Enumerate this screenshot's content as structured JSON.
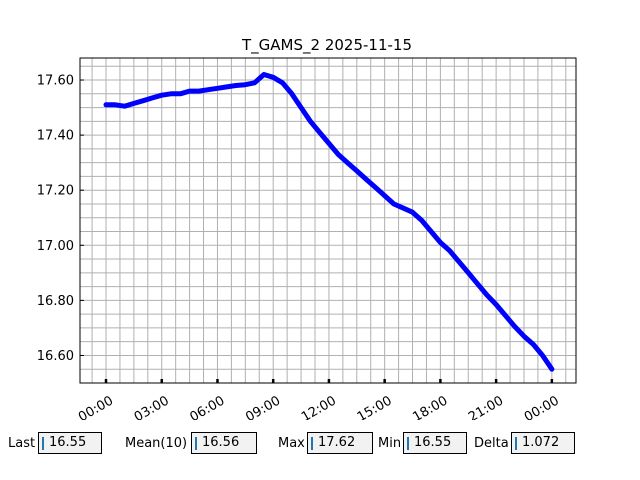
{
  "chart_data": {
    "type": "line",
    "title": "T_GAMS_2 2025-11-15",
    "xlabel": "",
    "ylabel": "",
    "x_tick_labels": [
      "00:00",
      "03:00",
      "06:00",
      "09:00",
      "12:00",
      "15:00",
      "18:00",
      "21:00",
      "00:00"
    ],
    "x_tick_hours": [
      0,
      3,
      6,
      9,
      12,
      15,
      18,
      21,
      24
    ],
    "xlim_hours": [
      -1.4,
      25.3
    ],
    "y_tick_labels": [
      "16.60",
      "16.80",
      "17.00",
      "17.20",
      "17.40",
      "17.60"
    ],
    "y_ticks": [
      16.6,
      16.8,
      17.0,
      17.2,
      17.4,
      17.6
    ],
    "ylim": [
      16.5,
      17.68
    ],
    "grid": true,
    "series": [
      {
        "color": "#0000ff",
        "x_hours": [
          0,
          0.5,
          1,
          1.5,
          2,
          2.5,
          3,
          3.5,
          4,
          4.5,
          5,
          5.5,
          6,
          6.5,
          7,
          7.5,
          8,
          8.5,
          9,
          9.5,
          10,
          10.5,
          11,
          11.5,
          12,
          12.5,
          13,
          13.5,
          14,
          14.5,
          15,
          15.5,
          16,
          16.5,
          17,
          17.5,
          18,
          18.5,
          19,
          19.5,
          20,
          20.5,
          21,
          21.5,
          22,
          22.5,
          23,
          23.5,
          24
        ],
        "y": [
          17.51,
          17.51,
          17.505,
          17.515,
          17.525,
          17.535,
          17.545,
          17.55,
          17.55,
          17.56,
          17.56,
          17.565,
          17.57,
          17.575,
          17.58,
          17.583,
          17.59,
          17.62,
          17.61,
          17.59,
          17.55,
          17.5,
          17.45,
          17.41,
          17.37,
          17.33,
          17.3,
          17.27,
          17.24,
          17.21,
          17.18,
          17.15,
          17.135,
          17.12,
          17.09,
          17.05,
          17.01,
          16.98,
          16.94,
          16.9,
          16.86,
          16.82,
          16.785,
          16.745,
          16.705,
          16.67,
          16.64,
          16.6,
          16.55
        ]
      }
    ]
  },
  "stats": {
    "last": {
      "label": "Last",
      "value": "16.55"
    },
    "mean": {
      "label": "Mean(10)",
      "value": "16.56"
    },
    "max": {
      "label": "Max",
      "value": "17.62"
    },
    "min": {
      "label": "Min",
      "value": "16.55"
    },
    "delta": {
      "label": "Delta",
      "value": "1.072"
    }
  }
}
